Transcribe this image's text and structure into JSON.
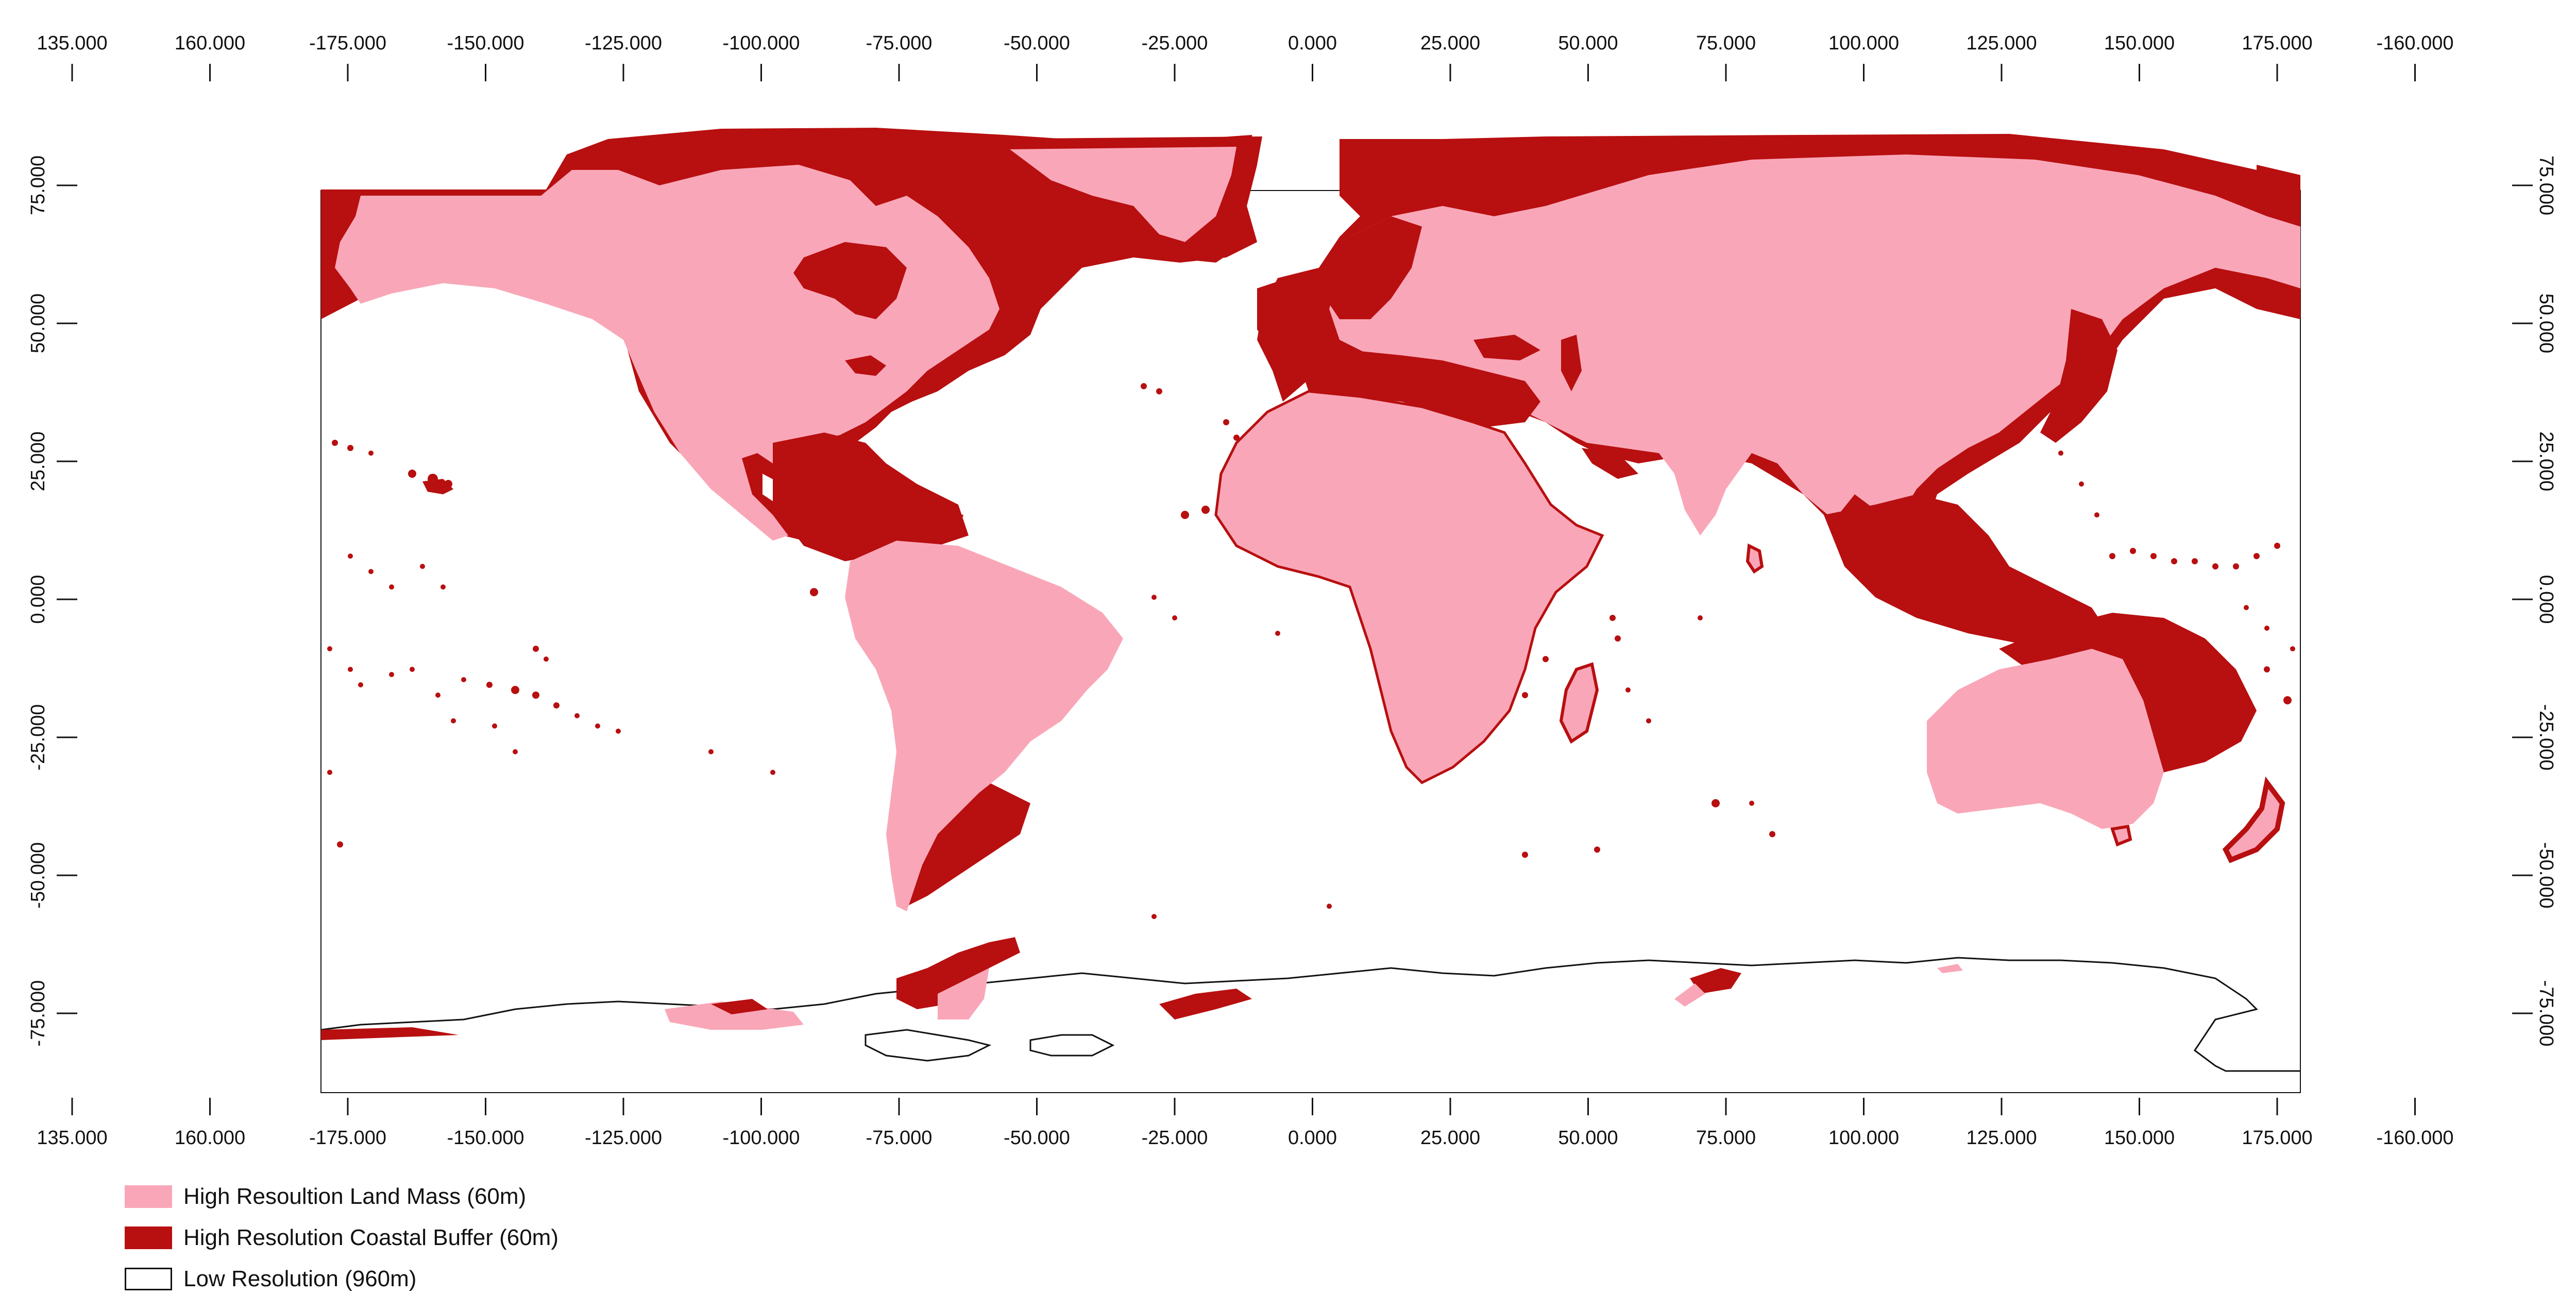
{
  "map": {
    "x_ticks_top": [
      "135.000",
      "160.000",
      "-175.000",
      "-150.000",
      "-125.000",
      "-100.000",
      "-75.000",
      "-50.000",
      "-25.000",
      "0.000",
      "25.000",
      "50.000",
      "75.000",
      "100.000",
      "125.000",
      "150.000",
      "175.000",
      "-160.000"
    ],
    "x_ticks_bottom": [
      "135.000",
      "160.000",
      "-175.000",
      "-150.000",
      "-125.000",
      "-100.000",
      "-75.000",
      "-50.000",
      "-25.000",
      "0.000",
      "25.000",
      "50.000",
      "75.000",
      "100.000",
      "125.000",
      "150.000",
      "175.000",
      "-160.000"
    ],
    "y_ticks": [
      "75.000",
      "50.000",
      "25.000",
      "0.000",
      "-25.000",
      "-50.000",
      "-75.000"
    ],
    "colors": {
      "land_mass": "#f9a7b8",
      "coastal_buffer": "#b80f10",
      "low_resolution_outline": "#111111",
      "background": "#ffffff"
    }
  },
  "legend": {
    "items": [
      {
        "label": "High Resoultion Land Mass (60m)",
        "swatch": "land-mass"
      },
      {
        "label": "High Resolution Coastal Buffer (60m)",
        "swatch": "coastal-buffer"
      },
      {
        "label": "Low Resolution (960m)",
        "swatch": "low-resolution"
      }
    ]
  }
}
